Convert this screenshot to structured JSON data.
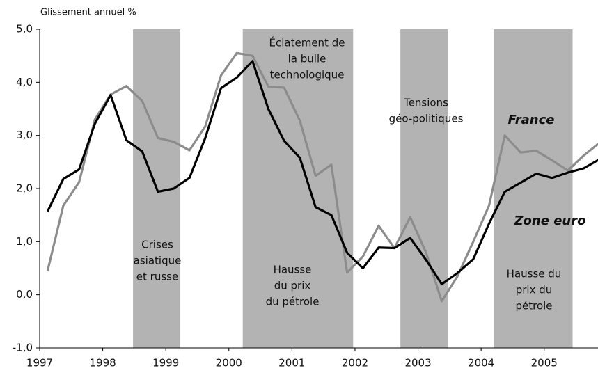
{
  "chart_data": {
    "type": "line",
    "y_label": "Glissement annuel  %",
    "x": [
      1997.125,
      1997.375,
      1997.625,
      1997.875,
      1998.125,
      1998.375,
      1998.625,
      1998.875,
      1999.125,
      1999.375,
      1999.625,
      1999.875,
      2000.125,
      2000.375,
      2000.625,
      2000.875,
      2001.125,
      2001.375,
      2001.625,
      2001.875,
      2002.125,
      2002.375,
      2002.625,
      2002.875,
      2003.125,
      2003.375,
      2003.625,
      2003.875,
      2004.125,
      2004.375,
      2004.625,
      2004.875,
      2005.125,
      2005.375,
      2005.625,
      2005.875
    ],
    "series": [
      {
        "name": "France",
        "color": "#8c8c8c",
        "values": [
          0.45,
          1.68,
          2.12,
          3.3,
          3.77,
          3.93,
          3.65,
          2.95,
          2.88,
          2.72,
          3.17,
          4.13,
          4.55,
          4.5,
          3.92,
          3.9,
          3.28,
          2.24,
          2.45,
          0.42,
          0.72,
          1.3,
          0.88,
          1.46,
          0.8,
          -0.12,
          0.35,
          1.0,
          1.68,
          3.0,
          2.68,
          2.71,
          2.53,
          2.34,
          2.62,
          2.86
        ]
      },
      {
        "name": "Zone euro",
        "color": "#000000",
        "values": [
          1.57,
          2.18,
          2.36,
          3.22,
          3.76,
          2.91,
          2.7,
          1.94,
          2.0,
          2.2,
          2.95,
          3.89,
          4.09,
          4.4,
          3.5,
          2.9,
          2.58,
          1.65,
          1.5,
          0.79,
          0.5,
          0.89,
          0.88,
          1.07,
          0.66,
          0.2,
          0.41,
          0.67,
          1.34,
          1.94,
          2.11,
          2.28,
          2.2,
          2.3,
          2.38,
          2.55
        ]
      }
    ],
    "bands": [
      [
        1998.48,
        1999.23
      ],
      [
        2000.22,
        2001.97
      ],
      [
        2002.72,
        2003.47
      ],
      [
        2004.2,
        2005.45
      ]
    ],
    "band_color": "#b3b3b3",
    "annotations": [
      [
        "Crises",
        "asiatique",
        "et russe"
      ],
      [
        "Éclatement de",
        "la bulle",
        "technologique"
      ],
      [
        "Hausse",
        "du prix",
        "du pétrole"
      ],
      [
        "Tensions",
        "géo-politiques"
      ],
      [
        "Hausse du",
        "prix du",
        "pétrole"
      ]
    ],
    "xlim": [
      1997,
      2005.875
    ],
    "xticks": [
      1997,
      1998,
      1999,
      2000,
      2001,
      2002,
      2003,
      2004,
      2005
    ],
    "ylim": [
      -1,
      5
    ],
    "yticks": [
      {
        "value": -1,
        "label": "-1,0"
      },
      {
        "value": 0,
        "label": "0,0"
      },
      {
        "value": 1,
        "label": "1,0"
      },
      {
        "value": 2,
        "label": "2,0"
      },
      {
        "value": 3,
        "label": "3,0"
      },
      {
        "value": 4,
        "label": "4,0"
      },
      {
        "value": 5,
        "label": "5,0"
      }
    ]
  }
}
